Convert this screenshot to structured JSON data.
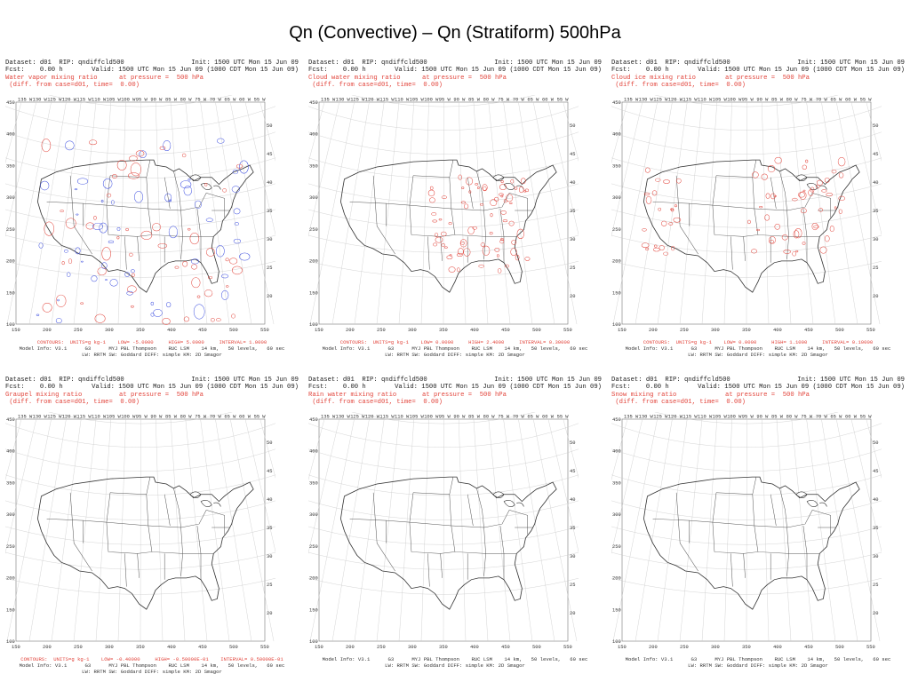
{
  "slide_title": "Qn (Convective) – Qn (Stratiform)  500hPa",
  "map_meta": {
    "dataset_line": "Dataset: d01  RIP: qndiffcld500",
    "init_line": "Init: 1500 UTC Mon 15 Jun 09",
    "fcst_line": "Fcst:    0.00 h",
    "valid_line": "Valid: 1500 UTC Mon 15 Jun 09 (1000 CDT Mon 15 Jun 09)",
    "pressure_text": "at pressure =  500 hPa",
    "diff_text": "(diff. from case=d01, time=  0.00)",
    "model_info_line": "Model Info: V3.1      G3      MYJ PBL Thompson    RUC LSM    14 km,   50 levels,   60 sec",
    "physics_line": "LW: RRTM SW: Goddard DIFF: simple KM: 2D Smagor",
    "x_ticks": [
      "150",
      "200",
      "250",
      "300",
      "350",
      "400",
      "450",
      "500",
      "550"
    ],
    "y_ticks": [
      "100",
      "150",
      "200",
      "250",
      "300",
      "350",
      "400",
      "450"
    ],
    "lon_labels": [
      "135 W",
      "130 W",
      "125 W",
      "120 W",
      "115 W",
      "110 W",
      "105 W",
      "100 W",
      "95 W",
      "90 W",
      "85 W",
      "80 W",
      "75 W",
      "70 W",
      "65 W",
      "60 W",
      "55 W"
    ],
    "lat_labels": [
      "50 N",
      "45 N",
      "40 N",
      "35 N",
      "30 N",
      "25 N",
      "20 N"
    ]
  },
  "panels": [
    {
      "variable": "Water vapor mixing ratio",
      "contour_info": "CONTOURS:  UNITS=g kg-1    LOW= -5.0000     HIGH= 5.0000     INTERVAL= 1.0000",
      "has_contours": true,
      "contour_colors": [
        "#e2453c",
        "#3d4fe0"
      ]
    },
    {
      "variable": "Cloud water mixing ratio",
      "contour_info": "CONTOURS:  UNITS=g kg-1    LOW= 0.0000     HIGH= 2.4000     INTERVAL= 0.30000",
      "has_contours": true,
      "contour_colors": [
        "#e2453c"
      ]
    },
    {
      "variable": "Cloud ice mixing ratio",
      "contour_info": "CONTOURS:  UNITS=g kg-1    LOW= 0.0000     HIGH= 1.1000     INTERVAL= 0.10000",
      "has_contours": true,
      "contour_colors": [
        "#e2453c"
      ]
    },
    {
      "variable": "Graupel mixing ratio",
      "contour_info": "CONTOURS:  UNITS=g kg-1    LOW= -0.40000     HIGH= -0.50000E-01    INTERVAL= 0.50000E-01",
      "has_contours": false,
      "contour_colors": []
    },
    {
      "variable": "Rain water mixing ratio",
      "contour_info": "",
      "has_contours": false,
      "contour_colors": []
    },
    {
      "variable": "Snow mixing ratio",
      "contour_info": "",
      "has_contours": false,
      "contour_colors": []
    }
  ]
}
